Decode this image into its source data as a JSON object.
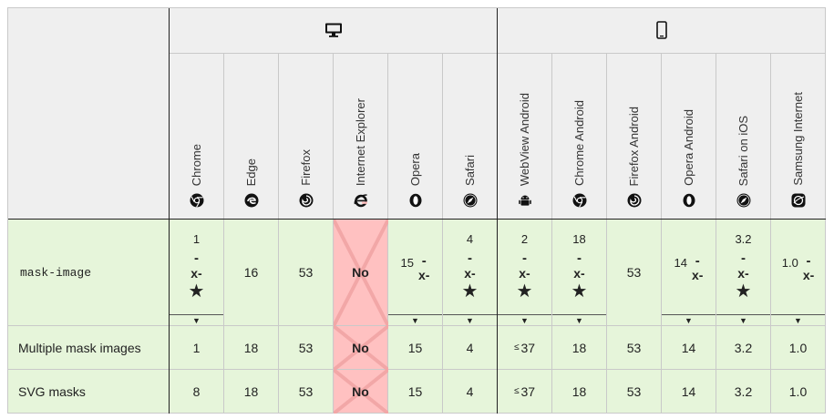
{
  "platforms": [
    {
      "name": "desktop",
      "icon": "monitor-icon"
    },
    {
      "name": "mobile",
      "icon": "phone-icon"
    }
  ],
  "browsers": [
    {
      "name": "Chrome",
      "icon": "chrome-icon"
    },
    {
      "name": "Edge",
      "icon": "edge-icon"
    },
    {
      "name": "Firefox",
      "icon": "firefox-icon"
    },
    {
      "name": "Internet Explorer",
      "icon": "ie-icon"
    },
    {
      "name": "Opera",
      "icon": "opera-icon"
    },
    {
      "name": "Safari",
      "icon": "safari-icon"
    },
    {
      "name": "WebView Android",
      "icon": "android-icon"
    },
    {
      "name": "Chrome Android",
      "icon": "chrome-icon"
    },
    {
      "name": "Firefox Android",
      "icon": "firefox-icon"
    },
    {
      "name": "Opera Android",
      "icon": "opera-icon"
    },
    {
      "name": "Safari on iOS",
      "icon": "safari-icon"
    },
    {
      "name": "Samsung Internet",
      "icon": "samsung-icon"
    }
  ],
  "features": [
    {
      "name": "mask-image",
      "cells": [
        {
          "value": "1",
          "dash": "-",
          "x": "x-",
          "star": "★",
          "arrow": "▼"
        },
        {
          "value": "16"
        },
        {
          "value": "53"
        },
        {
          "value": "No"
        },
        {
          "value": "15",
          "dash": "-",
          "x": "x-",
          "arrow": "▼"
        },
        {
          "value": "4",
          "dash": "-",
          "x": "x-",
          "star": "★",
          "arrow": "▼"
        },
        {
          "value": "2",
          "dash": "-",
          "x": "x-",
          "star": "★",
          "arrow": "▼"
        },
        {
          "value": "18",
          "dash": "-",
          "x": "x-",
          "star": "★",
          "arrow": "▼"
        },
        {
          "value": "53"
        },
        {
          "value": "14",
          "dash": "-",
          "x": "x-",
          "arrow": "▼"
        },
        {
          "value": "3.2",
          "dash": "-",
          "x": "x-",
          "star": "★",
          "arrow": "▼"
        },
        {
          "value": "1.0",
          "dash": "-",
          "x": "x-",
          "arrow": "▼"
        }
      ]
    },
    {
      "name": "Multiple mask images",
      "cells": [
        {
          "value": "1"
        },
        {
          "value": "18"
        },
        {
          "value": "53"
        },
        {
          "value": "No"
        },
        {
          "value": "15"
        },
        {
          "value": "4"
        },
        {
          "value": "37",
          "prefix": "≤"
        },
        {
          "value": "18"
        },
        {
          "value": "53"
        },
        {
          "value": "14"
        },
        {
          "value": "3.2"
        },
        {
          "value": "1.0"
        }
      ]
    },
    {
      "name": "SVG masks",
      "cells": [
        {
          "value": "8"
        },
        {
          "value": "18"
        },
        {
          "value": "53"
        },
        {
          "value": "No"
        },
        {
          "value": "15"
        },
        {
          "value": "4"
        },
        {
          "value": "37",
          "prefix": "≤"
        },
        {
          "value": "18"
        },
        {
          "value": "53"
        },
        {
          "value": "14"
        },
        {
          "value": "3.2"
        },
        {
          "value": "1.0"
        }
      ]
    }
  ],
  "colors": {
    "supported": "#e6f5da",
    "unsupported": "#ffc1c1",
    "header": "#efefef"
  }
}
